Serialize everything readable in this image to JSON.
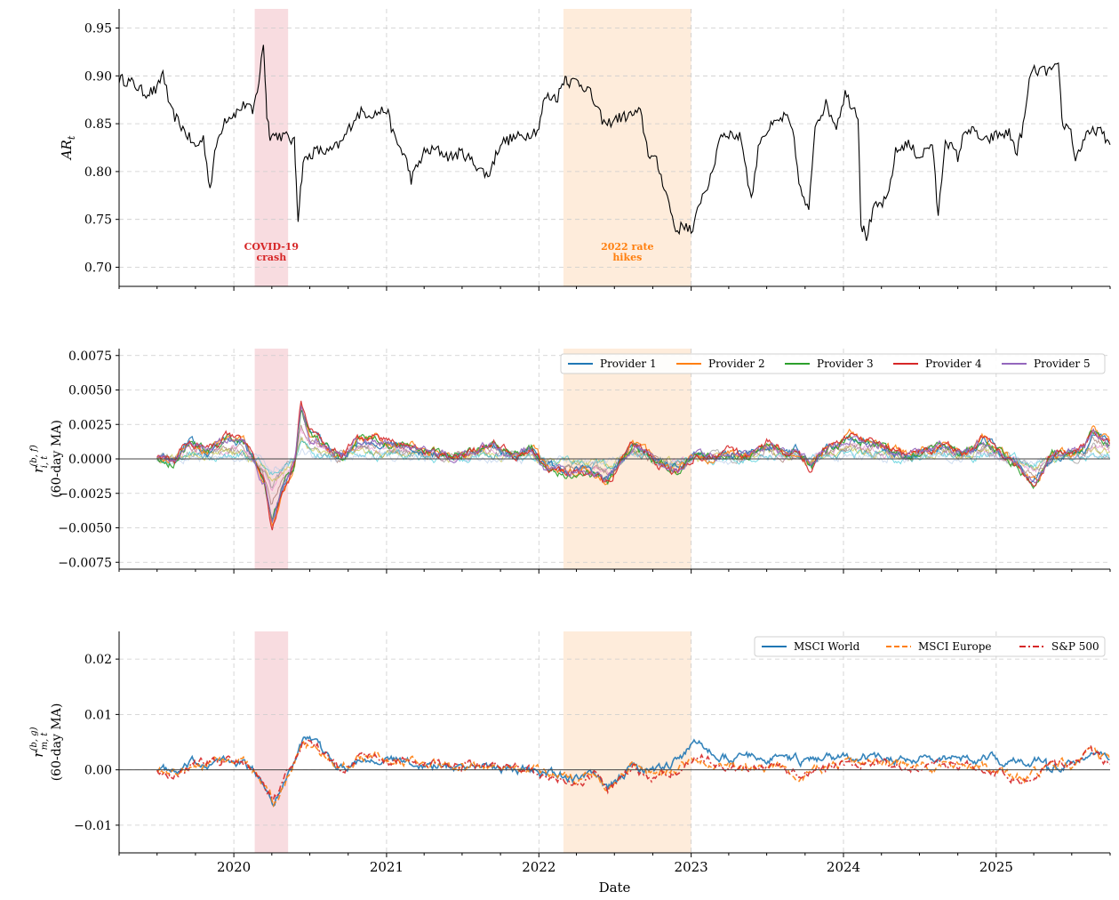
{
  "chart_data": [
    {
      "type": "line",
      "panel": "top",
      "ylabel": "AR",
      "ylabel_sub": "t",
      "xlim": [
        "2019-04-01",
        "2025-10-01"
      ],
      "ylim": [
        0.68,
        0.97
      ],
      "y_ticks": [
        "0.70",
        "0.75",
        "0.80",
        "0.85",
        "0.90",
        "0.95"
      ],
      "grid": true,
      "shaded_periods": [
        {
          "label_line1": "COVID-19",
          "label_line2": "crash",
          "start": "2020-02-20",
          "end": "2020-05-10",
          "color": "#f4c5cc"
        },
        {
          "label_line1": "2022 rate",
          "label_line2": "hikes",
          "start": "2022-03-01",
          "end": "2023-01-01",
          "color": "#fde0c3"
        }
      ],
      "series": [
        {
          "color": "#000000",
          "points": [
            [
              "2019-04-01",
              0.897
            ],
            [
              "2019-05-01",
              0.893
            ],
            [
              "2019-06-01",
              0.882
            ],
            [
              "2019-07-01",
              0.885
            ],
            [
              "2019-07-15",
              0.905
            ],
            [
              "2019-08-01",
              0.865
            ],
            [
              "2019-09-01",
              0.845
            ],
            [
              "2019-10-01",
              0.825
            ],
            [
              "2019-10-20",
              0.835
            ],
            [
              "2019-11-05",
              0.782
            ],
            [
              "2019-11-20",
              0.828
            ],
            [
              "2019-12-10",
              0.855
            ],
            [
              "2020-01-01",
              0.86
            ],
            [
              "2020-01-15",
              0.865
            ],
            [
              "2020-02-01",
              0.872
            ],
            [
              "2020-02-15",
              0.86
            ],
            [
              "2020-03-01",
              0.895
            ],
            [
              "2020-03-12",
              0.935
            ],
            [
              "2020-03-20",
              0.86
            ],
            [
              "2020-03-28",
              0.838
            ],
            [
              "2020-04-15",
              0.838
            ],
            [
              "2020-05-10",
              0.836
            ],
            [
              "2020-05-25",
              0.83
            ],
            [
              "2020-06-03",
              0.752
            ],
            [
              "2020-06-15",
              0.81
            ],
            [
              "2020-07-15",
              0.822
            ],
            [
              "2020-08-15",
              0.82
            ],
            [
              "2020-09-15",
              0.83
            ],
            [
              "2020-10-15",
              0.855
            ],
            [
              "2020-11-01",
              0.862
            ],
            [
              "2020-12-01",
              0.86
            ],
            [
              "2021-01-01",
              0.865
            ],
            [
              "2021-01-20",
              0.835
            ],
            [
              "2021-02-15",
              0.815
            ],
            [
              "2021-03-01",
              0.792
            ],
            [
              "2021-04-01",
              0.82
            ],
            [
              "2021-05-01",
              0.823
            ],
            [
              "2021-06-01",
              0.815
            ],
            [
              "2021-07-01",
              0.82
            ],
            [
              "2021-08-01",
              0.808
            ],
            [
              "2021-09-01",
              0.795
            ],
            [
              "2021-10-01",
              0.83
            ],
            [
              "2021-11-01",
              0.835
            ],
            [
              "2021-12-01",
              0.838
            ],
            [
              "2022-01-01",
              0.845
            ],
            [
              "2022-01-15",
              0.878
            ],
            [
              "2022-02-15",
              0.878
            ],
            [
              "2022-03-05",
              0.9
            ],
            [
              "2022-03-15",
              0.893
            ],
            [
              "2022-04-01",
              0.895
            ],
            [
              "2022-05-01",
              0.885
            ],
            [
              "2022-05-20",
              0.865
            ],
            [
              "2022-06-10",
              0.848
            ],
            [
              "2022-07-01",
              0.855
            ],
            [
              "2022-08-01",
              0.858
            ],
            [
              "2022-09-01",
              0.862
            ],
            [
              "2022-09-20",
              0.82
            ],
            [
              "2022-10-10",
              0.81
            ],
            [
              "2022-11-01",
              0.78
            ],
            [
              "2022-11-25",
              0.738
            ],
            [
              "2022-12-20",
              0.745
            ],
            [
              "2023-01-05",
              0.735
            ],
            [
              "2023-01-20",
              0.768
            ],
            [
              "2023-02-05",
              0.782
            ],
            [
              "2023-02-20",
              0.795
            ],
            [
              "2023-03-10",
              0.838
            ],
            [
              "2023-04-01",
              0.84
            ],
            [
              "2023-05-01",
              0.835
            ],
            [
              "2023-05-25",
              0.77
            ],
            [
              "2023-06-15",
              0.835
            ],
            [
              "2023-07-15",
              0.848
            ],
            [
              "2023-08-15",
              0.858
            ],
            [
              "2023-09-01",
              0.842
            ],
            [
              "2023-09-20",
              0.78
            ],
            [
              "2023-10-10",
              0.757
            ],
            [
              "2023-10-25",
              0.85
            ],
            [
              "2023-11-20",
              0.87
            ],
            [
              "2023-12-15",
              0.848
            ],
            [
              "2024-01-05",
              0.882
            ],
            [
              "2024-01-20",
              0.87
            ],
            [
              "2024-02-05",
              0.86
            ],
            [
              "2024-02-12",
              0.745
            ],
            [
              "2024-02-25",
              0.732
            ],
            [
              "2024-03-15",
              0.762
            ],
            [
              "2024-04-15",
              0.77
            ],
            [
              "2024-05-05",
              0.82
            ],
            [
              "2024-06-01",
              0.83
            ],
            [
              "2024-07-01",
              0.815
            ],
            [
              "2024-08-01",
              0.83
            ],
            [
              "2024-08-15",
              0.752
            ],
            [
              "2024-09-01",
              0.835
            ],
            [
              "2024-10-01",
              0.815
            ],
            [
              "2024-10-20",
              0.845
            ],
            [
              "2024-11-15",
              0.84
            ],
            [
              "2024-12-01",
              0.83
            ],
            [
              "2025-01-01",
              0.838
            ],
            [
              "2025-02-01",
              0.84
            ],
            [
              "2025-02-20",
              0.82
            ],
            [
              "2025-03-10",
              0.855
            ],
            [
              "2025-03-25",
              0.905
            ],
            [
              "2025-05-01",
              0.905
            ],
            [
              "2025-05-30",
              0.908
            ],
            [
              "2025-06-10",
              0.845
            ],
            [
              "2025-06-25",
              0.85
            ],
            [
              "2025-07-10",
              0.813
            ],
            [
              "2025-08-01",
              0.835
            ],
            [
              "2025-09-01",
              0.845
            ],
            [
              "2025-10-01",
              0.828
            ]
          ]
        }
      ]
    },
    {
      "type": "line",
      "panel": "middle",
      "ylabel": "(60-day MA)",
      "ylabel_symbol": "r",
      "ylabel_sup": "(b, f)",
      "ylabel_sub": "i, t",
      "xlim": [
        "2019-04-01",
        "2025-10-01"
      ],
      "ylim": [
        -0.008,
        0.008
      ],
      "y_ticks": [
        "−0.0075",
        "−0.0050",
        "−0.0025",
        "0.0000",
        "0.0025",
        "0.0050",
        "0.0075"
      ],
      "y_tick_values": [
        -0.0075,
        -0.005,
        -0.0025,
        0,
        0.0025,
        0.005,
        0.0075
      ],
      "grid": true,
      "legend": "top-right",
      "base_profile": [
        [
          "2019-07-01",
          0.0003
        ],
        [
          "2019-08-10",
          -0.0003
        ],
        [
          "2019-09-15",
          0.0012
        ],
        [
          "2019-11-01",
          0.0006
        ],
        [
          "2019-12-15",
          0.0014
        ],
        [
          "2020-01-25",
          0.0012
        ],
        [
          "2020-02-20",
          -0.0002
        ],
        [
          "2020-03-15",
          -0.0018
        ],
        [
          "2020-04-01",
          -0.0045
        ],
        [
          "2020-04-25",
          -0.0022
        ],
        [
          "2020-05-25",
          -0.0005
        ],
        [
          "2020-06-10",
          0.0038
        ],
        [
          "2020-07-01",
          0.0018
        ],
        [
          "2020-08-15",
          0.0008
        ],
        [
          "2020-09-15",
          0.0002
        ],
        [
          "2020-10-15",
          0.0012
        ],
        [
          "2020-12-01",
          0.0015
        ],
        [
          "2021-01-15",
          0.0011
        ],
        [
          "2021-03-01",
          0.0008
        ],
        [
          "2021-04-15",
          0.0005
        ],
        [
          "2021-06-01",
          0.0002
        ],
        [
          "2021-07-15",
          0.0004
        ],
        [
          "2021-09-15",
          0.001
        ],
        [
          "2021-11-01",
          0.0002
        ],
        [
          "2021-12-15",
          0.0008
        ],
        [
          "2022-01-15",
          -0.0004
        ],
        [
          "2022-03-01",
          -0.001
        ],
        [
          "2022-04-15",
          -0.0008
        ],
        [
          "2022-05-20",
          -0.0012
        ],
        [
          "2022-06-15",
          -0.0016
        ],
        [
          "2022-07-15",
          -0.0002
        ],
        [
          "2022-08-15",
          0.001
        ],
        [
          "2022-09-15",
          0.0004
        ],
        [
          "2022-10-15",
          -0.0004
        ],
        [
          "2022-12-01",
          -0.0008
        ],
        [
          "2023-01-15",
          0.0004
        ],
        [
          "2023-02-15",
          0.0001
        ],
        [
          "2023-04-01",
          0.0005
        ],
        [
          "2023-05-15",
          0.0002
        ],
        [
          "2023-07-01",
          0.0011
        ],
        [
          "2023-08-15",
          0.0004
        ],
        [
          "2023-09-15",
          0.0007
        ],
        [
          "2023-10-15",
          -0.0007
        ],
        [
          "2023-11-15",
          0.0007
        ],
        [
          "2023-12-20",
          0.001
        ],
        [
          "2024-01-20",
          0.0017
        ],
        [
          "2024-03-01",
          0.0012
        ],
        [
          "2024-04-15",
          0.0008
        ],
        [
          "2024-06-01",
          0.0003
        ],
        [
          "2024-07-15",
          0.0006
        ],
        [
          "2024-09-01",
          0.001
        ],
        [
          "2024-10-15",
          0.0003
        ],
        [
          "2024-12-01",
          0.0014
        ],
        [
          "2025-01-20",
          0.0004
        ],
        [
          "2025-02-20",
          -0.0004
        ],
        [
          "2025-04-01",
          -0.0018
        ],
        [
          "2025-05-15",
          0.0002
        ],
        [
          "2025-06-15",
          0.0004
        ],
        [
          "2025-08-01",
          0.0008
        ],
        [
          "2025-08-20",
          0.002
        ],
        [
          "2025-10-01",
          0.001
        ]
      ],
      "series": [
        {
          "name": "Provider 1",
          "color": "#1f77b4",
          "scale": 0.95
        },
        {
          "name": "Provider 2",
          "color": "#ff7f0e",
          "scale": 1.05
        },
        {
          "name": "Provider 3",
          "color": "#2ca02c",
          "scale": 1.0
        },
        {
          "name": "Provider 4",
          "color": "#d62728",
          "scale": 1.1
        },
        {
          "name": "Provider 5",
          "color": "#9467bd",
          "scale": 0.98
        }
      ],
      "faint_series": [
        {
          "color": "#8c564b",
          "scale": 0.7
        },
        {
          "color": "#e377c2",
          "scale": 0.55
        },
        {
          "color": "#7f7f7f",
          "scale": 0.45
        },
        {
          "color": "#bcbd22",
          "scale": 0.35
        },
        {
          "color": "#17becf",
          "scale": 0.25
        },
        {
          "color": "#aec7e8",
          "scale": 0.15
        }
      ]
    },
    {
      "type": "line",
      "panel": "bottom",
      "xlabel": "Date",
      "ylabel": "(60-day MA)",
      "ylabel_symbol": "r",
      "ylabel_sup": "(b, g)",
      "ylabel_sub": "m, t",
      "xlim": [
        "2019-04-01",
        "2025-10-01"
      ],
      "ylim": [
        -0.015,
        0.025
      ],
      "y_ticks": [
        "−0.01",
        "0.00",
        "0.01",
        "0.02"
      ],
      "y_tick_values": [
        -0.01,
        0,
        0.01,
        0.02
      ],
      "x_ticks": [
        "2020",
        "2021",
        "2022",
        "2023",
        "2024",
        "2025"
      ],
      "grid": true,
      "legend": "top-right",
      "base_profile": [
        [
          "2019-07-01",
          0.0005
        ],
        [
          "2019-08-15",
          -0.0008
        ],
        [
          "2019-10-01",
          0.0012
        ],
        [
          "2019-12-01",
          0.0015
        ],
        [
          "2020-01-25",
          0.0012
        ],
        [
          "2020-02-20",
          -0.0005
        ],
        [
          "2020-03-20",
          -0.0035
        ],
        [
          "2020-04-05",
          -0.0055
        ],
        [
          "2020-05-01",
          -0.002
        ],
        [
          "2020-05-20",
          0.001
        ],
        [
          "2020-06-15",
          0.0055
        ],
        [
          "2020-07-15",
          0.0042
        ],
        [
          "2020-08-15",
          0.0022
        ],
        [
          "2020-09-15",
          0.0004
        ],
        [
          "2020-10-15",
          0.0018
        ],
        [
          "2020-12-15",
          0.0025
        ],
        [
          "2021-02-01",
          0.0015
        ],
        [
          "2021-04-01",
          0.001
        ],
        [
          "2021-06-01",
          0.0006
        ],
        [
          "2021-08-01",
          0.0008
        ],
        [
          "2021-10-01",
          0.0004
        ],
        [
          "2021-12-01",
          0.0002
        ],
        [
          "2022-01-15",
          -0.0006
        ],
        [
          "2022-03-01",
          -0.0012
        ],
        [
          "2022-04-15",
          -0.0018
        ],
        [
          "2022-05-15",
          -0.0005
        ],
        [
          "2022-06-15",
          -0.0035
        ],
        [
          "2022-07-20",
          -0.0012
        ],
        [
          "2022-08-15",
          0.0008
        ],
        [
          "2022-09-15",
          -0.0015
        ],
        [
          "2022-10-15",
          -0.0012
        ],
        [
          "2022-12-01",
          0.0002
        ],
        [
          "2023-01-20",
          0.0022
        ],
        [
          "2023-03-01",
          0.0012
        ],
        [
          "2023-04-15",
          0.0008
        ],
        [
          "2023-06-01",
          0.0005
        ],
        [
          "2023-08-01",
          0.0008
        ],
        [
          "2023-10-01",
          -0.0012
        ],
        [
          "2023-11-15",
          0.0004
        ],
        [
          "2024-01-01",
          0.0012
        ],
        [
          "2024-03-01",
          0.0015
        ],
        [
          "2024-05-01",
          0.001
        ],
        [
          "2024-07-01",
          0.0005
        ],
        [
          "2024-09-01",
          0.001
        ],
        [
          "2024-11-01",
          0.0006
        ],
        [
          "2024-12-15",
          0.0002
        ],
        [
          "2025-02-01",
          -0.0008
        ],
        [
          "2025-03-15",
          -0.0018
        ],
        [
          "2025-05-01",
          0.0005
        ],
        [
          "2025-07-01",
          0.0012
        ],
        [
          "2025-08-15",
          0.0035
        ],
        [
          "2025-10-01",
          0.0012
        ]
      ],
      "series": [
        {
          "name": "MSCI World",
          "color": "#1f77b4",
          "dash": "",
          "scale": 1.0,
          "overrides": [
            [
              "2022-09-01",
              0
            ],
            [
              "2022-11-15",
              0.0008
            ],
            [
              "2023-01-15",
              0.0045
            ],
            [
              "2023-03-01",
              0.002
            ],
            [
              "2025-03-01",
              0.0018
            ],
            [
              "2025-05-01",
              0.0018
            ]
          ]
        },
        {
          "name": "MSCI Europe",
          "color": "#ff7f0e",
          "dash": "6,3",
          "scale": 1.0,
          "overrides": []
        },
        {
          "name": "S&P 500",
          "color": "#d62728",
          "dash": "7,3,2,3",
          "scale": 1.0,
          "overrides": []
        }
      ]
    }
  ]
}
